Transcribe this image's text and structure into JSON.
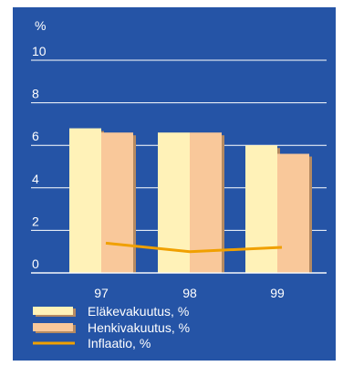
{
  "chart_data": {
    "type": "bar",
    "y_unit": "%",
    "categories": [
      "97",
      "98",
      "99"
    ],
    "yticks": [
      0,
      2,
      4,
      6,
      8,
      10
    ],
    "ylim": [
      0,
      10
    ],
    "grid": true,
    "legend_position": "bottom",
    "series": [
      {
        "name": "Eläkevakuutus, %",
        "kind": "bar",
        "values": [
          6.8,
          6.6,
          6.0
        ],
        "color": "#fff2b8"
      },
      {
        "name": "Henkivakuutus, %",
        "kind": "bar",
        "values": [
          6.6,
          6.6,
          5.6
        ],
        "color": "#f9c89a"
      },
      {
        "name": "Inflaatio, %",
        "kind": "line",
        "values": [
          1.4,
          1.0,
          1.2
        ],
        "color": "#f0a000"
      }
    ],
    "colors": {
      "background": "#2554a6",
      "grid": "#ffffff",
      "bar_shadow": "#b58a62"
    }
  }
}
